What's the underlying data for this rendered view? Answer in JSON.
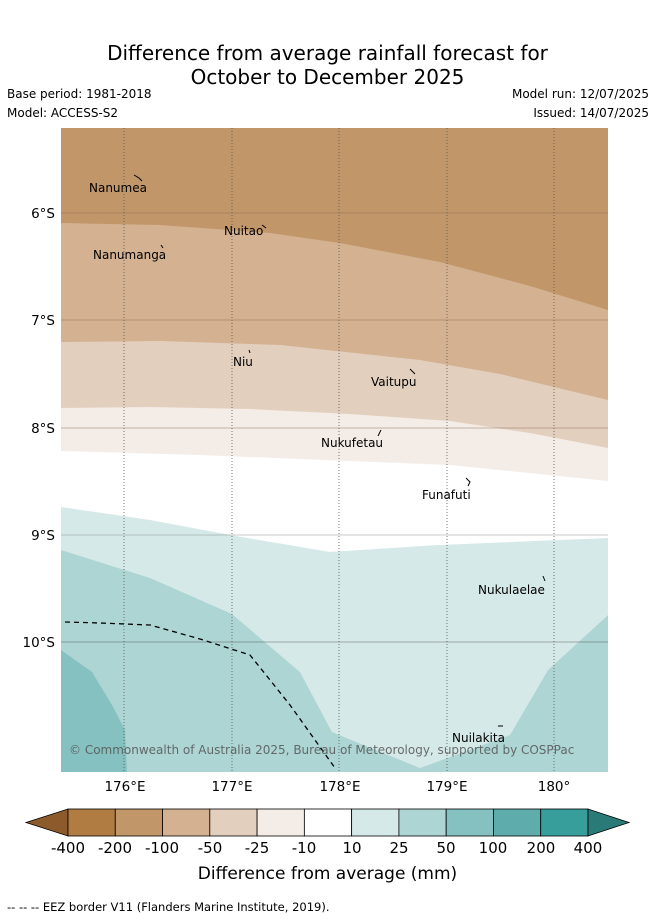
{
  "header": {
    "title_line1": "Difference from average rainfall forecast for",
    "title_line2": "October to December 2025",
    "base_period": "Base period: 1981-2018",
    "model": "Model: ACCESS-S2",
    "model_run": "Model run: 12/07/2025",
    "issued": "Issued: 14/07/2025"
  },
  "map": {
    "lat_labels": [
      "6°S",
      "7°S",
      "8°S",
      "9°S",
      "10°S"
    ],
    "lon_labels": [
      "176°E",
      "177°E",
      "178°E",
      "179°E",
      "180°"
    ],
    "islands": [
      {
        "name": "Nanumea"
      },
      {
        "name": "Nuitao"
      },
      {
        "name": "Nanumanga"
      },
      {
        "name": "Niu"
      },
      {
        "name": "Vaitupu"
      },
      {
        "name": "Nukufetau"
      },
      {
        "name": "Funafuti"
      },
      {
        "name": "Nukulaelae"
      },
      {
        "name": "Nuilakita"
      }
    ],
    "copyright": "© Commonwealth of Australia 2025, Bureau of Meteorology, supported by COSPPac"
  },
  "legend": {
    "title": "Difference from average (mm)",
    "ticks": [
      "-400",
      "-200",
      "-100",
      "-50",
      "-25",
      "-10",
      "10",
      "25",
      "50",
      "100",
      "200",
      "400"
    ],
    "colors": [
      "#8c5a2b",
      "#b07c42",
      "#c19669",
      "#d3b191",
      "#e3cfbe",
      "#f4ece7",
      "#ffffff",
      "#d5e9e8",
      "#acd5d4",
      "#86c1c1",
      "#5eadac",
      "#389e9c",
      "#2a7a78"
    ]
  },
  "footnote": "--  --  -- EEZ border V11 (Flanders Marine Institute, 2019)."
}
